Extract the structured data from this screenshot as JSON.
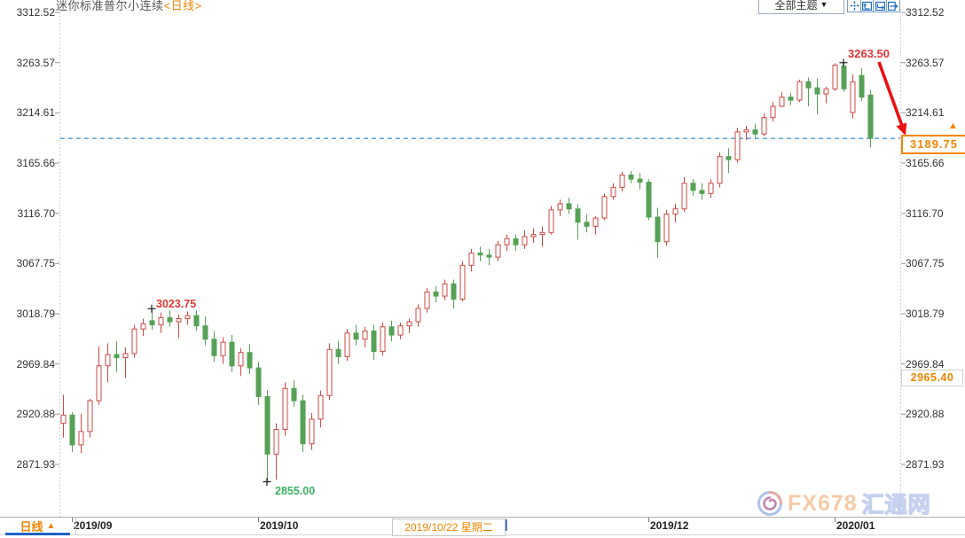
{
  "header": {
    "title": {
      "instrument": "迷你标准普尔小连续",
      "period": "<日线>"
    },
    "theme_dropdown": {
      "label": "全部主题",
      "chevron": "▼"
    },
    "tool_icons": [
      "crosshair-icon",
      "auto-scale-icon",
      "pan-right-icon",
      "go-to-latest-icon"
    ]
  },
  "y_axis": {
    "tick_labels": [
      "3312.52",
      "3263.57",
      "3214.61",
      "3165.66",
      "3116.70",
      "3067.75",
      "3018.79",
      "2969.84",
      "2920.88",
      "2871.93"
    ]
  },
  "x_axis": {
    "tick_labels": [
      {
        "label": "2019/09",
        "candle": 1
      },
      {
        "label": "2019/10",
        "candle": 22
      },
      {
        "label": "2019/12",
        "candle": 66
      },
      {
        "label": "2020/01",
        "candle": 87
      }
    ]
  },
  "price_tags": {
    "current": {
      "text": "3189.75",
      "value": 3189.75,
      "direction_marker": "▲"
    },
    "previous": {
      "text": "2965.40",
      "value": 2965.4
    }
  },
  "annotations": {
    "september_high": {
      "text": "3023.75",
      "value": 3023.75,
      "candle": 10
    },
    "october_low": {
      "text": "2855.00",
      "value": 2855.0,
      "candle": 23
    },
    "january_high": {
      "text": "3263.50",
      "value": 3263.5,
      "candle": 88
    }
  },
  "date_tooltip": {
    "text": "2019/10/22 星期二"
  },
  "bottom_bar": {
    "active_tab": {
      "label": "日线",
      "marker": "▲"
    }
  },
  "watermark": {
    "brand": "FX678",
    "site": "汇通网"
  },
  "colors": {
    "accent_orange": "#f28500",
    "up_red": "#cb4a44",
    "down_green": "#56a156",
    "annotation_red": "#e33636",
    "annotation_green": "#3cb363",
    "current_price_line_blue": "#2f8fdd",
    "arrow_red": "#ea1010",
    "axis_text": "#333333",
    "tab_underline_blue": "#1e63c8"
  },
  "chart_data": {
    "type": "candlestick",
    "title": "迷你标准普尔小连续 <日线> (Mini S&P 500 continuous, daily)",
    "y_range": [
      2871.93,
      3312.52
    ],
    "y_ticks": [
      3312.52,
      3263.57,
      3214.61,
      3165.66,
      3116.7,
      3067.75,
      3018.79,
      2969.84,
      2920.88,
      2871.93
    ],
    "x_month_ticks": [
      "2019/09",
      "2019/10",
      "2019/12",
      "2020/01"
    ],
    "current_price": 3189.75,
    "previous_settlement": 2965.4,
    "marked_points": [
      {
        "price": 3023.75,
        "candle": 10,
        "kind": "swing-high"
      },
      {
        "price": 2855.0,
        "candle": 23,
        "kind": "swing-low"
      },
      {
        "price": 3263.5,
        "candle": 88,
        "kind": "swing-high"
      }
    ],
    "up_style": {
      "border": "#cb4a44",
      "fill": "#ffffff"
    },
    "down_style": {
      "border": "#56a156",
      "fill": "#56a156"
    },
    "ohlc": [
      [
        2912,
        2940,
        2898,
        2920
      ],
      [
        2920,
        2923,
        2884,
        2891
      ],
      [
        2891,
        2921,
        2883,
        2904
      ],
      [
        2904,
        2936,
        2898,
        2934
      ],
      [
        2934,
        2987,
        2930,
        2968
      ],
      [
        2968,
        2990,
        2952,
        2979
      ],
      [
        2979,
        2992,
        2962,
        2976
      ],
      [
        2976,
        2986,
        2956,
        2980
      ],
      [
        2980,
        3008,
        2976,
        3004
      ],
      [
        3004,
        3014,
        2997,
        3009
      ],
      [
        3012,
        3023.75,
        3003,
        3008
      ],
      [
        3008,
        3020,
        3000,
        3015
      ],
      [
        3015,
        3022,
        3006,
        3011
      ],
      [
        3011,
        3018,
        2995,
        3014
      ],
      [
        3014,
        3021,
        3008,
        3017
      ],
      [
        3017,
        3022,
        3002,
        3007
      ],
      [
        3007,
        3016,
        2988,
        2994
      ],
      [
        2994,
        3002,
        2972,
        2978
      ],
      [
        2978,
        2996,
        2970,
        2991
      ],
      [
        2991,
        2998,
        2962,
        2968
      ],
      [
        2968,
        2985,
        2958,
        2981
      ],
      [
        2981,
        2989,
        2960,
        2966
      ],
      [
        2966,
        2972,
        2930,
        2938
      ],
      [
        2938,
        2944,
        2855,
        2882
      ],
      [
        2882,
        2912,
        2857,
        2906
      ],
      [
        2906,
        2952,
        2900,
        2946
      ],
      [
        2946,
        2954,
        2928,
        2934
      ],
      [
        2934,
        2940,
        2884,
        2892
      ],
      [
        2892,
        2922,
        2886,
        2916
      ],
      [
        2916,
        2944,
        2908,
        2939
      ],
      [
        2939,
        2990,
        2935,
        2984
      ],
      [
        2984,
        2992,
        2970,
        2977
      ],
      [
        2977,
        3004,
        2973,
        3000
      ],
      [
        3000,
        3008,
        2988,
        2994
      ],
      [
        2994,
        3006,
        2986,
        3002
      ],
      [
        3002,
        3008,
        2974,
        2982
      ],
      [
        2982,
        3010,
        2978,
        3006
      ],
      [
        3006,
        3012,
        2992,
        2998
      ],
      [
        2998,
        3010,
        2994,
        3007
      ],
      [
        3007,
        3014,
        3000,
        3011
      ],
      [
        3011,
        3028,
        3006,
        3024
      ],
      [
        3024,
        3044,
        3020,
        3040
      ],
      [
        3040,
        3046,
        3030,
        3036
      ],
      [
        3036,
        3052,
        3032,
        3048
      ],
      [
        3048,
        3052,
        3024,
        3033
      ],
      [
        3033,
        3070,
        3031,
        3066
      ],
      [
        3066,
        3082,
        3060,
        3078
      ],
      [
        3078,
        3084,
        3070,
        3076
      ],
      [
        3076,
        3082,
        3066,
        3074
      ],
      [
        3074,
        3090,
        3070,
        3086
      ],
      [
        3086,
        3096,
        3080,
        3092
      ],
      [
        3092,
        3096,
        3080,
        3086
      ],
      [
        3086,
        3100,
        3082,
        3094
      ],
      [
        3094,
        3102,
        3088,
        3096
      ],
      [
        3096,
        3104,
        3084,
        3098
      ],
      [
        3098,
        3124,
        3096,
        3120
      ],
      [
        3120,
        3130,
        3114,
        3126
      ],
      [
        3126,
        3132,
        3116,
        3121
      ],
      [
        3121,
        3126,
        3091,
        3108
      ],
      [
        3108,
        3116,
        3098,
        3104
      ],
      [
        3104,
        3114,
        3096,
        3112
      ],
      [
        3112,
        3136,
        3110,
        3133
      ],
      [
        3133,
        3146,
        3130,
        3142
      ],
      [
        3142,
        3157,
        3138,
        3154
      ],
      [
        3154,
        3158,
        3146,
        3150
      ],
      [
        3150,
        3156,
        3140,
        3147
      ],
      [
        3147,
        3150,
        3110,
        3113
      ],
      [
        3113,
        3122,
        3073,
        3089
      ],
      [
        3089,
        3120,
        3085,
        3116
      ],
      [
        3116,
        3126,
        3108,
        3121
      ],
      [
        3121,
        3152,
        3118,
        3146
      ],
      [
        3146,
        3150,
        3134,
        3139
      ],
      [
        3139,
        3146,
        3130,
        3136
      ],
      [
        3136,
        3150,
        3132,
        3146
      ],
      [
        3146,
        3176,
        3142,
        3172
      ],
      [
        3172,
        3180,
        3156,
        3169
      ],
      [
        3169,
        3200,
        3166,
        3196
      ],
      [
        3196,
        3202,
        3188,
        3198
      ],
      [
        3198,
        3204,
        3190,
        3194
      ],
      [
        3194,
        3214,
        3192,
        3210
      ],
      [
        3210,
        3225,
        3206,
        3221
      ],
      [
        3221,
        3235,
        3220,
        3230
      ],
      [
        3230,
        3234,
        3222,
        3227
      ],
      [
        3227,
        3247,
        3225,
        3245
      ],
      [
        3245,
        3249,
        3221,
        3239
      ],
      [
        3239,
        3248,
        3213,
        3233
      ],
      [
        3233,
        3240,
        3224,
        3238
      ],
      [
        3238,
        3263,
        3236,
        3261
      ],
      [
        3260,
        3263.5,
        3235,
        3238
      ],
      [
        3215,
        3252,
        3209,
        3245
      ],
      [
        3251,
        3258,
        3226,
        3230
      ],
      [
        3232,
        3237,
        3181,
        3189.75
      ]
    ]
  }
}
